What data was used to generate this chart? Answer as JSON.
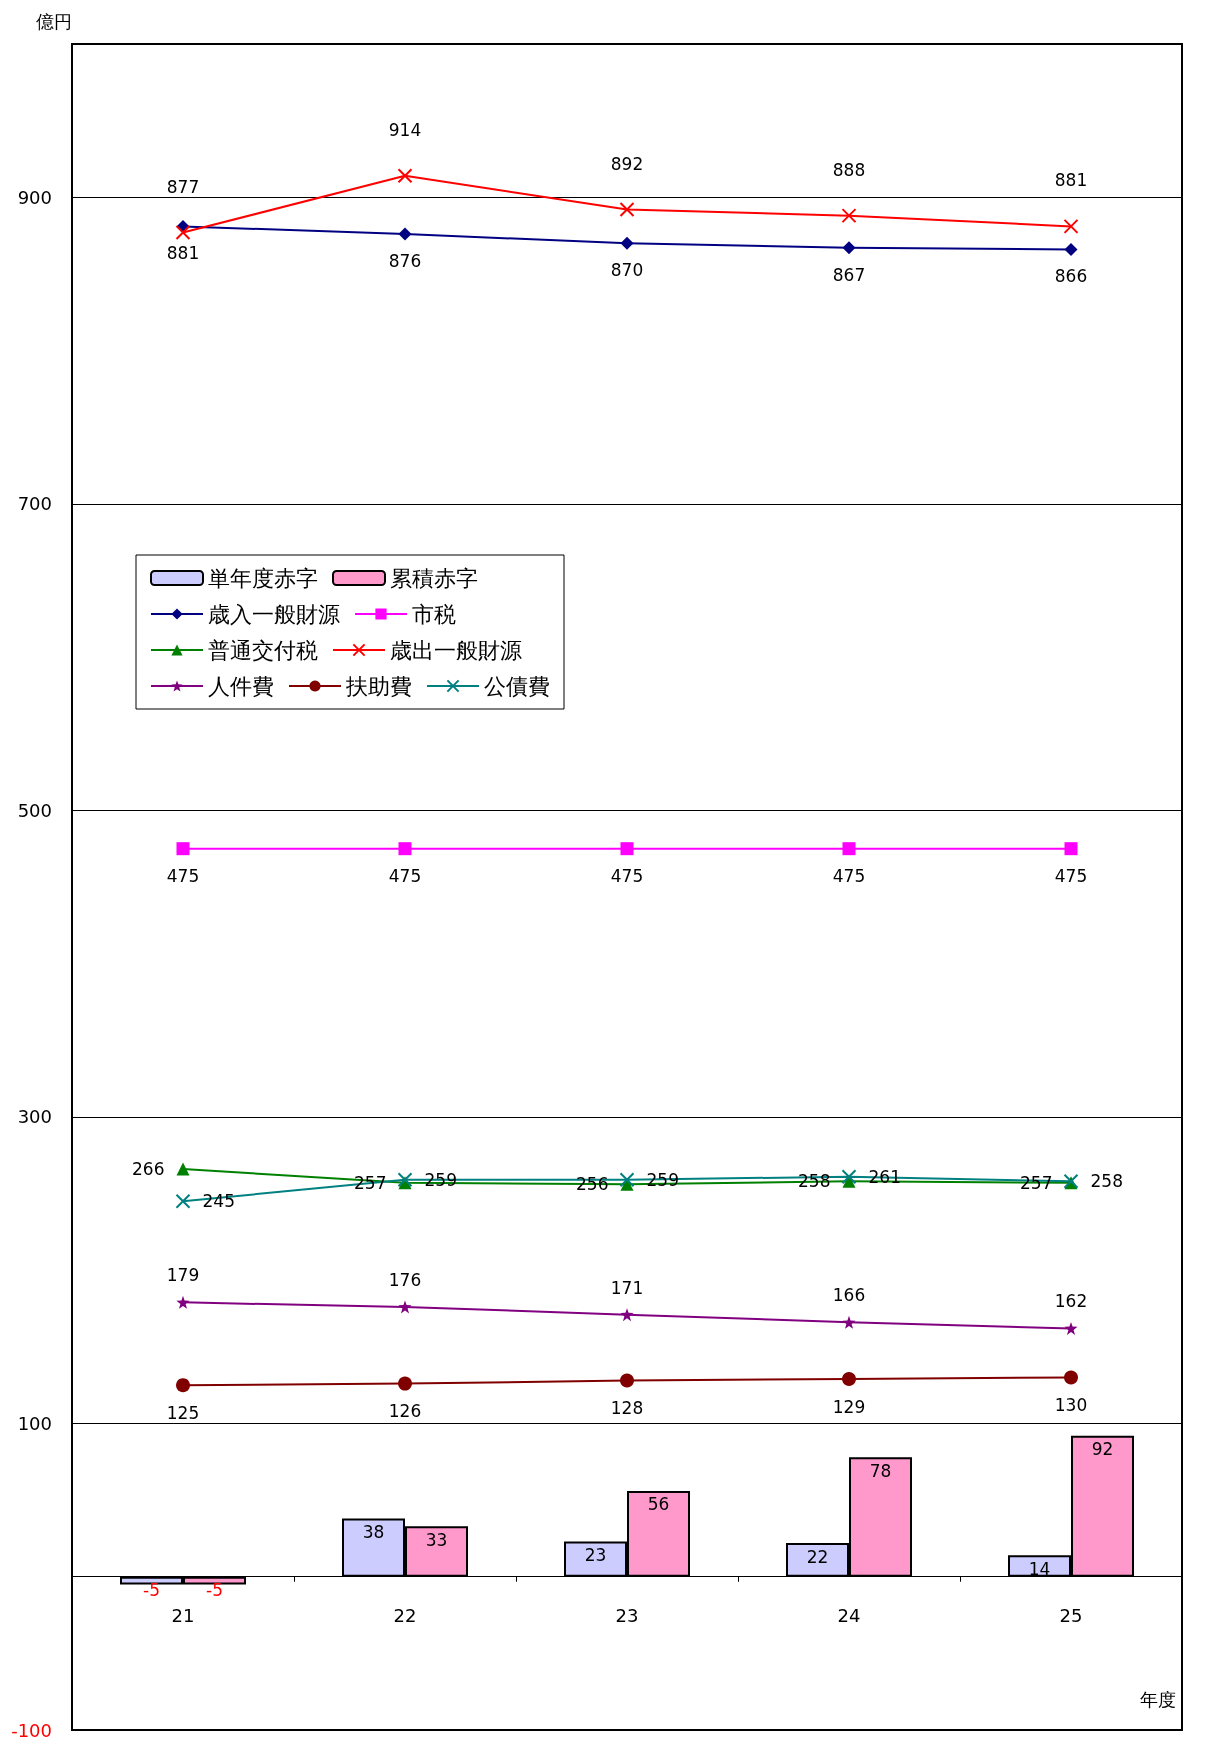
{
  "chart_data": {
    "type": "line",
    "ylabel": "億円",
    "xlabel": "年度",
    "categories": [
      "21",
      "22",
      "23",
      "24",
      "25"
    ],
    "ylim": [
      -100,
      1000
    ],
    "yticks": [
      -100,
      100,
      300,
      500,
      700,
      900
    ],
    "grid": "y",
    "legend": "left",
    "data_labels": true,
    "series": [
      {
        "name": "単年度赤字",
        "type": "bar",
        "color": "#ccccff",
        "values": [
          -5,
          38,
          23,
          22,
          14
        ]
      },
      {
        "name": "累積赤字",
        "type": "bar",
        "color": "#ff99cc",
        "values": [
          -5,
          33,
          56,
          78,
          92
        ]
      },
      {
        "name": "歳入一般財源",
        "color": "#000080",
        "marker": "diamond",
        "values": [
          881,
          876,
          870,
          867,
          866
        ]
      },
      {
        "name": "市税",
        "color": "#ff00ff",
        "marker": "square",
        "values": [
          475,
          475,
          475,
          475,
          475
        ]
      },
      {
        "name": "普通交付税",
        "color": "#008000",
        "marker": "triangle",
        "values": [
          266,
          257,
          256,
          258,
          257
        ]
      },
      {
        "name": "歳出一般財源",
        "color": "#ff0000",
        "marker": "cross",
        "values": [
          877,
          914,
          892,
          888,
          881
        ]
      },
      {
        "name": "人件費",
        "color": "#800080",
        "marker": "star",
        "values": [
          179,
          176,
          171,
          166,
          162
        ]
      },
      {
        "name": "扶助費",
        "color": "#800000",
        "marker": "circle",
        "values": [
          125,
          126,
          128,
          129,
          130
        ]
      },
      {
        "name": "公債費",
        "color": "#008080",
        "marker": "cross",
        "values": [
          245,
          259,
          259,
          261,
          258
        ]
      }
    ]
  }
}
